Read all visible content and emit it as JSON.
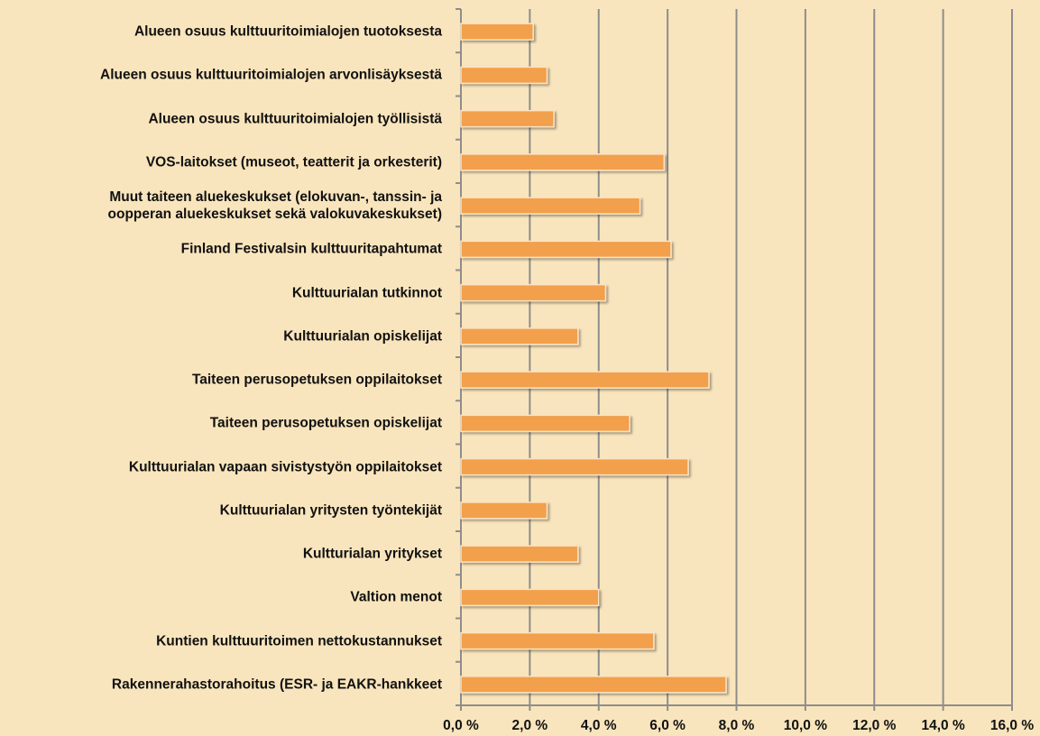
{
  "chart_data": {
    "type": "bar",
    "orientation": "horizontal",
    "categories": [
      "Alueen osuus kulttuuritoimialojen tuotoksesta",
      "Alueen osuus kulttuuritoimialojen arvonlisäyksestä",
      "Alueen osuus kulttuuritoimialojen työllisistä",
      "VOS-laitokset (museot, teatterit ja orkesterit)",
      "Muut taiteen aluekeskukset (elokuvan-, tanssin- ja\noopperan aluekeskukset sekä valokuvakeskukset)",
      "Finland Festivalsin kulttuuritapahtumat",
      "Kulttuurialan tutkinnot",
      "Kulttuurialan opiskelijat",
      "Taiteen perusopetuksen oppilaitokset",
      "Taiteen perusopetuksen opiskelijat",
      "Kulttuurialan vapaan sivistystyön oppilaitokset",
      "Kulttuurialan yritysten työntekijät",
      "Kultturialan yritykset",
      "Valtion menot",
      "Kuntien kulttuuritoimen nettokustannukset",
      "Rakennerahastorahoitus (ESR- ja EAKR-hankkeet"
    ],
    "values": [
      2.1,
      2.5,
      2.7,
      5.9,
      5.2,
      6.1,
      4.2,
      3.4,
      7.2,
      4.9,
      6.6,
      2.5,
      3.4,
      4.0,
      5.6,
      7.7
    ],
    "color": "#f2a04c",
    "xlim": [
      0,
      16
    ],
    "xticks": [
      {
        "value": 0,
        "label": "0,0 %"
      },
      {
        "value": 2,
        "label": "2,0 %"
      },
      {
        "value": 4,
        "label": "4,0 %"
      },
      {
        "value": 6,
        "label": "6,0 %"
      },
      {
        "value": 8,
        "label": "8,0 %"
      },
      {
        "value": 10,
        "label": "10,0 %"
      },
      {
        "value": 12,
        "label": "12,0 %"
      },
      {
        "value": 14,
        "label": "14,0 %"
      },
      {
        "value": 16,
        "label": "16,0 %"
      }
    ],
    "grid": true
  }
}
